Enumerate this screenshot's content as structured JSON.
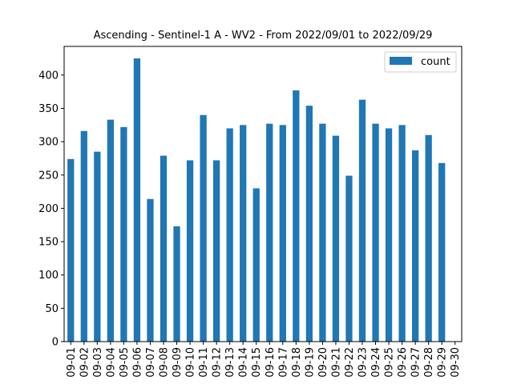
{
  "chart_data": {
    "type": "bar",
    "title": "Ascending - Sentinel-1 A - WV2 - From 2022/09/01 to 2022/09/29",
    "xlabel": "",
    "ylabel": "",
    "categories": [
      "09-01",
      "09-02",
      "09-03",
      "09-04",
      "09-05",
      "09-06",
      "09-07",
      "09-08",
      "09-09",
      "09-10",
      "09-11",
      "09-12",
      "09-13",
      "09-14",
      "09-15",
      "09-16",
      "09-17",
      "09-18",
      "09-19",
      "09-20",
      "09-21",
      "09-22",
      "09-23",
      "09-24",
      "09-25",
      "09-26",
      "09-27",
      "09-28",
      "09-29",
      "09-30"
    ],
    "series": [
      {
        "name": "count",
        "color": "#1f77b4",
        "values": [
          274,
          316,
          285,
          333,
          322,
          425,
          214,
          279,
          173,
          272,
          340,
          272,
          320,
          325,
          230,
          327,
          325,
          377,
          354,
          327,
          309,
          249,
          363,
          327,
          320,
          325,
          287,
          310,
          268,
          0
        ]
      }
    ],
    "ylim": [
      0,
      443
    ],
    "yticks": [
      0,
      50,
      100,
      150,
      200,
      250,
      300,
      350,
      400
    ],
    "legend": {
      "position": "top-right",
      "label": "count"
    },
    "grid": false
  }
}
